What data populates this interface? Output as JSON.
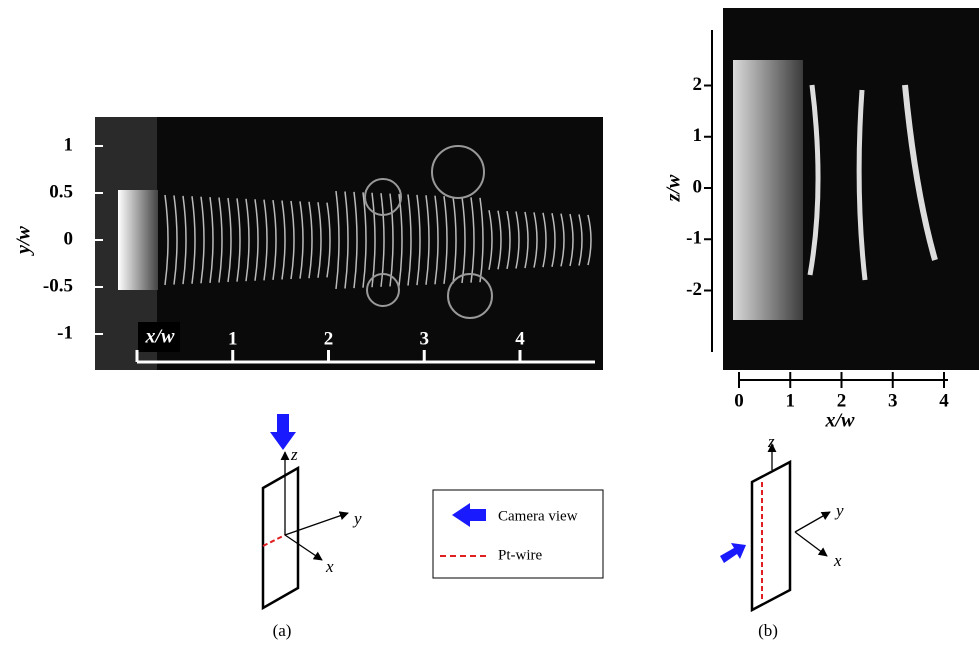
{
  "panel_a": {
    "y_axis_label": "y/w",
    "y_ticks": [
      1,
      0.5,
      0,
      -0.5,
      -1
    ],
    "x_axis_label": "x/w",
    "x_ticks": [
      1,
      2,
      3,
      4
    ],
    "schematic_axes": [
      "z",
      "y",
      "x"
    ],
    "caption": "(a)"
  },
  "panel_b": {
    "y_axis_label": "z/w",
    "y_ticks": [
      2,
      1,
      0,
      -1,
      -2
    ],
    "x_axis_label": "x/w",
    "x_ticks": [
      0,
      1,
      2,
      3,
      4
    ],
    "schematic_axes": [
      "z",
      "y",
      "x"
    ],
    "caption": "(b)"
  },
  "legend": {
    "items": [
      "Camera view",
      "Pt-wire"
    ]
  }
}
